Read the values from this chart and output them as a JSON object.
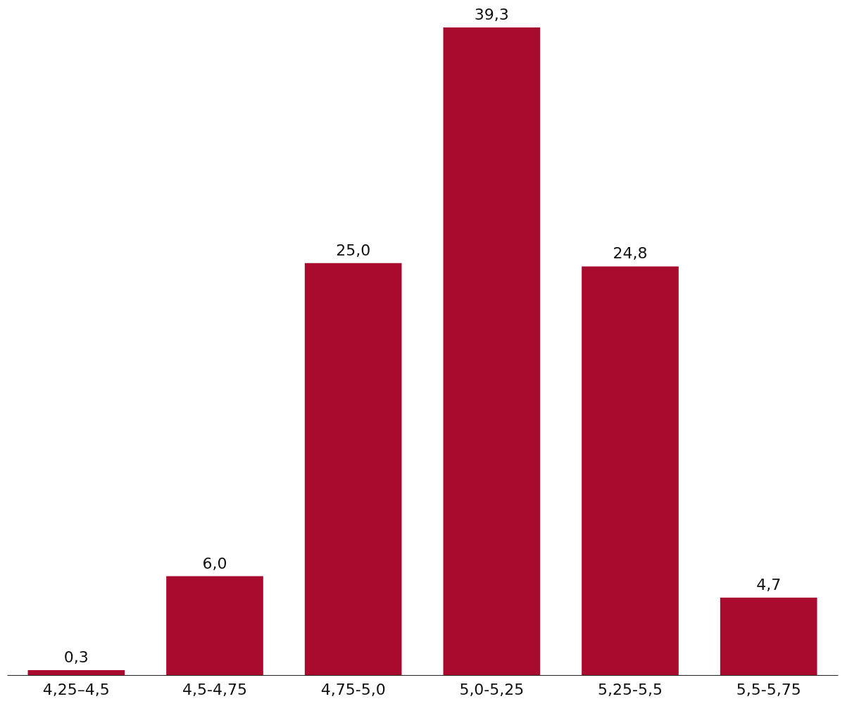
{
  "chart_data": {
    "type": "bar",
    "categories": [
      "4,25–4,5",
      "4,5-4,75",
      "4,75-5,0",
      "5,0-5,25",
      "5,25-5,5",
      "5,5-5,75"
    ],
    "values": [
      0.3,
      6.0,
      25.0,
      39.3,
      24.8,
      4.7
    ],
    "value_labels": [
      "0,3",
      "6,0",
      "25,0",
      "39,3",
      "24,8",
      "4,7"
    ],
    "color": "#a90b2f",
    "ylim": [
      0,
      39.3
    ],
    "tick_labels": "x",
    "grid": false
  }
}
